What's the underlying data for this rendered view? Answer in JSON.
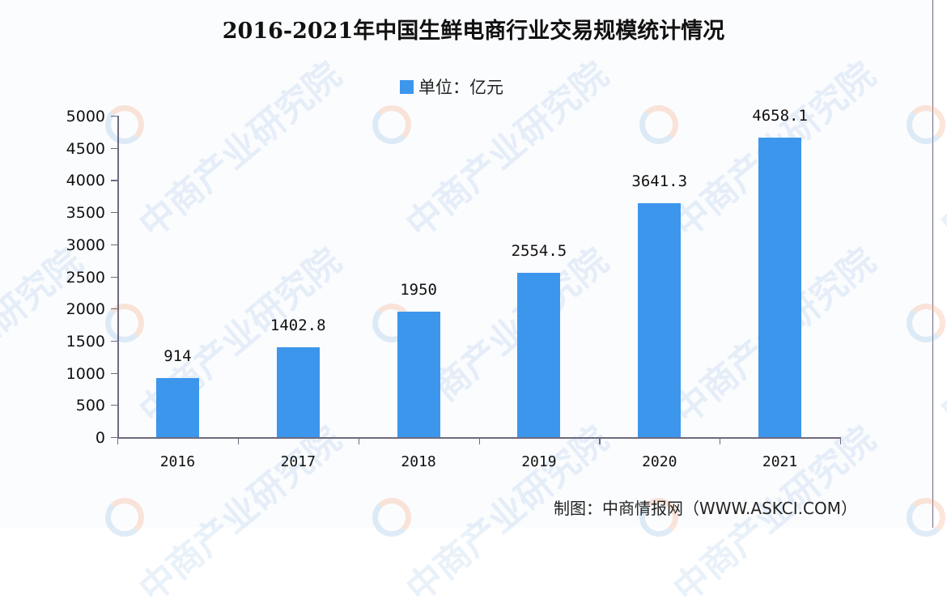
{
  "chart_data": {
    "type": "bar",
    "title": "2016-2021年中国生鲜电商行业交易规模统计情况",
    "legend": [
      "单位：亿元"
    ],
    "legend_position": "top",
    "categories": [
      "2016",
      "2017",
      "2018",
      "2019",
      "2020",
      "2021"
    ],
    "series": [
      {
        "name": "单位：亿元",
        "values": [
          914,
          1402.8,
          1950,
          2554.5,
          3641.3,
          4658.1
        ],
        "color": "#3c96ec"
      }
    ],
    "value_labels": [
      "914",
      "1402.8",
      "1950",
      "2554.5",
      "3641.3",
      "4658.1"
    ],
    "xlabel": "",
    "ylabel": "",
    "ylim": [
      0,
      5000
    ],
    "yticks": [
      "0",
      "500",
      "1000",
      "1500",
      "2000",
      "2500",
      "3000",
      "3500",
      "4000",
      "4500",
      "5000"
    ],
    "grid": false
  },
  "source": "制图：中商情报网（WWW.ASKCI.COM）",
  "watermark": "中商产业研究院"
}
